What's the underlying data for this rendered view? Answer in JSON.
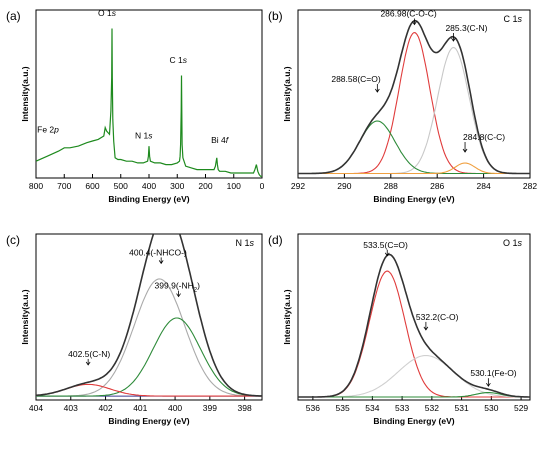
{
  "chart_data": [
    {
      "panel": "(a)",
      "type": "line",
      "xlabel": "Binding Energy (eV)",
      "ylabel": "Intensity(a.u.)",
      "xlim": [
        800,
        0
      ],
      "x_ticks": [
        800,
        700,
        600,
        500,
        400,
        300,
        200,
        100,
        0
      ],
      "colors": {
        "curve": "#1e8a1e"
      },
      "annotations": [
        {
          "label": "Fe 2p",
          "x": 711,
          "y": 0.26
        },
        {
          "label": "O 1s",
          "x": 531,
          "y": 0.93
        },
        {
          "label": "N 1s",
          "x": 400,
          "y": 0.2
        },
        {
          "label": "C 1s",
          "x": 285,
          "y": 0.65
        },
        {
          "label": "Bi 4f",
          "x": 159,
          "y": 0.16
        }
      ],
      "series": [
        {
          "x": [
            800,
            760,
            720,
            700,
            680,
            650,
            620,
            600,
            580,
            560,
            555,
            550,
            545,
            540,
            535,
            532,
            531,
            530,
            528,
            525,
            520,
            510,
            500,
            480,
            460,
            440,
            420,
            405,
            402,
            400,
            398,
            395,
            380,
            360,
            340,
            320,
            300,
            292,
            290,
            288,
            286,
            285,
            284,
            283,
            280,
            270,
            250,
            230,
            210,
            190,
            170,
            165,
            162,
            160,
            158,
            155,
            150,
            130,
            110,
            90,
            70,
            50,
            30,
            25,
            20,
            15,
            10,
            5,
            0
          ],
          "y": [
            0.1,
            0.13,
            0.16,
            0.18,
            0.18,
            0.19,
            0.21,
            0.22,
            0.23,
            0.25,
            0.3,
            0.28,
            0.27,
            0.26,
            0.4,
            0.6,
            0.89,
            0.6,
            0.35,
            0.22,
            0.12,
            0.11,
            0.11,
            0.1,
            0.1,
            0.09,
            0.09,
            0.1,
            0.13,
            0.19,
            0.13,
            0.1,
            0.09,
            0.09,
            0.08,
            0.08,
            0.09,
            0.1,
            0.13,
            0.2,
            0.4,
            0.61,
            0.4,
            0.2,
            0.12,
            0.07,
            0.06,
            0.05,
            0.05,
            0.05,
            0.05,
            0.07,
            0.1,
            0.12,
            0.08,
            0.05,
            0.04,
            0.04,
            0.03,
            0.03,
            0.03,
            0.03,
            0.03,
            0.05,
            0.08,
            0.04,
            0.02,
            0.01,
            0.01
          ]
        }
      ]
    },
    {
      "panel": "(b)",
      "type": "line",
      "element": "C 1s",
      "xlabel": "Binding Energy (eV)",
      "ylabel": "Intensity(a.u.)",
      "xlim": [
        292,
        282
      ],
      "x_ticks": [
        292,
        290,
        288,
        286,
        284,
        282
      ],
      "baseline": 0.03,
      "annotations": [
        {
          "label": "286.98(C-O-C)",
          "x": 286.98,
          "y": 1.05
        },
        {
          "label": "285.3(C-N)",
          "x": 285.3,
          "y": 0.94
        },
        {
          "label": "288.58(C=O)",
          "x": 288.58,
          "y": 0.6
        },
        {
          "label": "284.8(C-C)",
          "x": 284.8,
          "y": 0.2
        }
      ],
      "peaks": [
        {
          "name": "286.98(C-O-C)",
          "center": 286.98,
          "height": 0.94,
          "fwhm": 1.55,
          "color": "#e03c3c"
        },
        {
          "name": "285.3(C-N)",
          "center": 285.3,
          "height": 0.84,
          "fwhm": 1.6,
          "color": "#c8c8c8"
        },
        {
          "name": "288.58(C=O)",
          "center": 288.58,
          "height": 0.35,
          "fwhm": 1.8,
          "color": "#2e8b3a"
        },
        {
          "name": "284.8(C-C)",
          "center": 284.8,
          "height": 0.07,
          "fwhm": 1.0,
          "color": "#f0a040"
        }
      ],
      "colors": {
        "envelope": "#333333",
        "baseline": "#3b3b8f"
      }
    },
    {
      "panel": "(c)",
      "type": "line",
      "element": "N 1s",
      "xlabel": "Binding Energy (eV)",
      "ylabel": "Intensity(a.u.)",
      "xlim": [
        404,
        397.5
      ],
      "x_ticks": [
        404,
        403,
        402,
        401,
        400,
        399,
        398
      ],
      "baseline": 0.02,
      "annotations": [
        {
          "label": "400.4(-NHCO-)",
          "x": 400.4,
          "y": 0.72
        },
        {
          "label": "399.9(-NH",
          "sub": "2",
          "tail": ")",
          "x": 399.9,
          "y": 0.55
        },
        {
          "label": "402.5(C-N)",
          "x": 402.5,
          "y": 0.2
        }
      ],
      "peaks": [
        {
          "name": "400.4(-NHCO-)",
          "center": 400.45,
          "height": 0.6,
          "fwhm": 1.7,
          "color": "#aaaaaa"
        },
        {
          "name": "399.9(-NH2)",
          "center": 399.95,
          "height": 0.4,
          "fwhm": 1.6,
          "color": "#2e8b3a"
        },
        {
          "name": "402.5(C-N)",
          "center": 402.5,
          "height": 0.06,
          "fwhm": 1.5,
          "color": "#e03c3c"
        }
      ],
      "colors": {
        "envelope": "#333333",
        "baseline": "#3b3b8f"
      }
    },
    {
      "panel": "(d)",
      "type": "line",
      "element": "O 1s",
      "xlabel": "Binding Energy (eV)",
      "ylabel": "Intensity(a.u.)",
      "xlim": [
        536.5,
        528.7
      ],
      "x_ticks": [
        536,
        535,
        534,
        533,
        532,
        531,
        530,
        529
      ],
      "baseline": 0.02,
      "annotations": [
        {
          "label": "533.5(C=O)",
          "x": 533.5,
          "y": 1.0
        },
        {
          "label": "532.2(C-O)",
          "x": 532.2,
          "y": 0.5
        },
        {
          "label": "530.1(Fe-O)",
          "x": 530.1,
          "y": 0.12
        }
      ],
      "peaks": [
        {
          "name": "533.5(C=O)",
          "center": 533.5,
          "height": 0.85,
          "fwhm": 1.4,
          "color": "#e03c3c"
        },
        {
          "name": "532.2(C-O)",
          "center": 532.2,
          "height": 0.28,
          "fwhm": 2.2,
          "color": "#d0d0d0"
        },
        {
          "name": "530.1(Fe-O)",
          "center": 530.1,
          "height": 0.03,
          "fwhm": 1.0,
          "color": "#2e8b3a"
        }
      ],
      "colors": {
        "envelope": "#333333",
        "baseline": "#3b3b8f"
      }
    }
  ]
}
